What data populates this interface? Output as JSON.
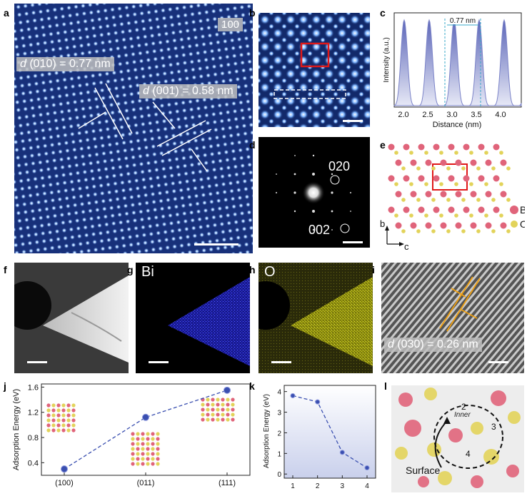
{
  "panel_labels": {
    "a": "a",
    "b": "b",
    "c": "c",
    "d": "d",
    "e": "e",
    "f": "f",
    "g": "g",
    "h": "h",
    "i": "i",
    "j": "j",
    "k": "k",
    "l": "l"
  },
  "panel_a": {
    "zone_axis": "100",
    "d010_italic": "d",
    "d010_text": " (010) =  0.77 nm",
    "d001_italic": "d",
    "d001_text": " (001) =  0.58 nm"
  },
  "panel_c": {
    "xlabel": "Distance (nm)",
    "ylabel": "Intensity (a.u.)",
    "spacing_label": "0.77 nm",
    "xticks": [
      "2.0",
      "2.5",
      "3.0",
      "3.5",
      "4.0"
    ]
  },
  "panel_d": {
    "spot_1": "020",
    "spot_2": "002"
  },
  "panel_e": {
    "legend_b": "B",
    "legend_o": "O",
    "axis_b": "b",
    "axis_c": "c"
  },
  "panel_g": {
    "element": "Bi"
  },
  "panel_h": {
    "element": "O"
  },
  "panel_i": {
    "d_italic": "d",
    "d_text": " (030) = 0.26 nm"
  },
  "panel_l": {
    "inner": "Inner",
    "surface": "Surface",
    "n2": "2",
    "n3": "3",
    "n4": "4"
  },
  "chart_data": [
    {
      "type": "line",
      "panel": "j",
      "categories": [
        "(100)",
        "(011)",
        "(111)"
      ],
      "values": [
        0.3,
        1.12,
        1.55
      ],
      "ylabel": "Adsorption Energy (eV)",
      "yticks": [
        "0.4",
        "0.8",
        "1.2",
        "1.6"
      ],
      "ylim": [
        0.2,
        1.65
      ],
      "color": "#3a4fb0"
    },
    {
      "type": "line",
      "panel": "k",
      "x": [
        "1",
        "2",
        "3",
        "4"
      ],
      "values": [
        3.8,
        3.5,
        1.05,
        0.3
      ],
      "ylabel": "Adsorption Energy (eV)",
      "yticks": [
        "0",
        "1",
        "2",
        "3",
        "4"
      ],
      "ylim": [
        -0.2,
        4.3
      ],
      "color": "#3a4fb0"
    }
  ]
}
